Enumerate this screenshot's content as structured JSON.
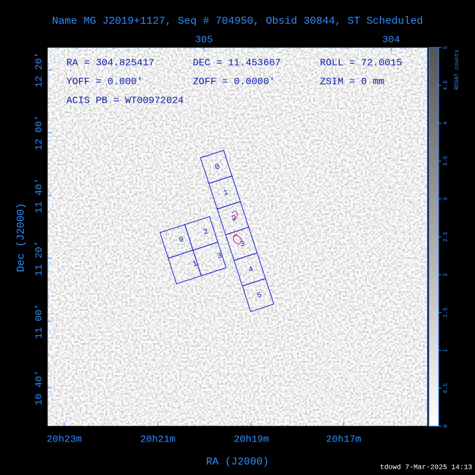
{
  "title": "Name MG J2019+1127, Seq # 704950, Obsid 30844, ST Scheduled",
  "info": [
    "RA = 304.825417",
    "DEC = 11.453667",
    "ROLL = 72.0015",
    "YOFF =  0.000'",
    "ZOFF =  0.0000'",
    "ZSIM = 0 mm",
    "ACIS PB = WT00972024"
  ],
  "top_axis_ticks": [
    "305",
    "304"
  ],
  "x_axis": {
    "label": "RA (J2000)",
    "ticks": [
      "20h23m",
      "20h21m",
      "20h19m",
      "20h17m"
    ]
  },
  "y_axis": {
    "label": "Dec (J2000)",
    "ticks": [
      "12 20'",
      "12 00'",
      "11 40'",
      "11 20'",
      "11 00'",
      "10 40'"
    ]
  },
  "colorbar": {
    "label": "ROSAT counts",
    "ticks": [
      "0",
      "0.5",
      "1",
      "1.5",
      "2",
      "2.5",
      "3",
      "3.5",
      "4",
      "4.5",
      "5"
    ]
  },
  "chips": {
    "i_array": [
      "0",
      "1",
      "2",
      "3"
    ],
    "s_array": [
      "0",
      "1",
      "2",
      "3",
      "4",
      "5"
    ]
  },
  "footer": "tdowd  7-Mar-2025 14:13"
}
